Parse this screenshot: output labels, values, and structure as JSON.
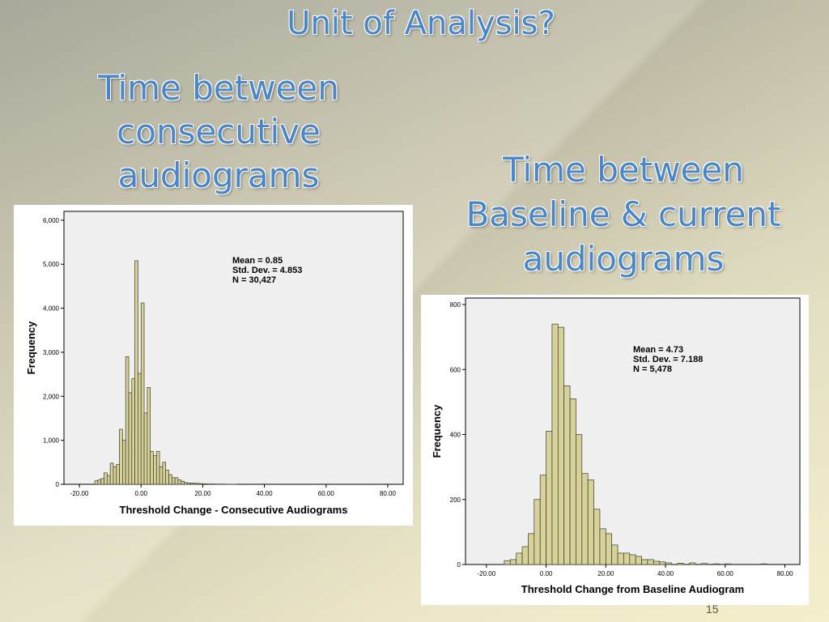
{
  "slide": {
    "title": "Unit of Analysis?",
    "left_heading": [
      "Time between",
      "consecutive",
      "audiograms"
    ],
    "right_heading": [
      "Time between",
      "Baseline & current",
      "audiograms"
    ],
    "slide_number": "15"
  },
  "chart_data": [
    {
      "type": "bar",
      "xlabel": "Threshold Change - Consecutive Audiograms",
      "ylabel": "Frequency",
      "xlim": [
        -25,
        85
      ],
      "ylim": [
        0,
        6200
      ],
      "x_ticks": [
        -20,
        0,
        20,
        40,
        60,
        80
      ],
      "x_tick_labels": [
        "-20.00",
        "0.00",
        "20.00",
        "40.00",
        "60.00",
        "80.00"
      ],
      "y_ticks": [
        0,
        1000,
        2000,
        3000,
        4000,
        5000,
        6000
      ],
      "y_tick_labels": [
        "0",
        "1,000",
        "2,000",
        "3,000",
        "4,000",
        "5,000",
        "6,000"
      ],
      "stats": [
        "Mean = 0.85",
        "Std. Dev. = 4.853",
        "N = 30,427"
      ],
      "bin_width": 1,
      "bins": [
        -15,
        -14,
        -13,
        -12,
        -11,
        -10,
        -9,
        -8,
        -7,
        -6,
        -5,
        -4,
        -3,
        -2,
        -1,
        0,
        1,
        2,
        3,
        4,
        5,
        6,
        7,
        8,
        9,
        10,
        11,
        12,
        13,
        14,
        15,
        16,
        17,
        18,
        19,
        20,
        21,
        22,
        23,
        24,
        25,
        26,
        27,
        28,
        29,
        30
      ],
      "values": [
        80,
        100,
        130,
        260,
        200,
        480,
        400,
        450,
        1250,
        1000,
        2900,
        2080,
        2400,
        5080,
        2520,
        4120,
        1620,
        2200,
        750,
        650,
        750,
        400,
        500,
        320,
        220,
        150,
        150,
        100,
        70,
        40,
        30,
        30,
        25,
        20,
        15,
        12,
        10,
        8,
        8,
        6,
        5,
        5,
        4,
        3,
        3,
        2
      ]
    },
    {
      "type": "bar",
      "xlabel": "Threshold Change from Baseline Audiogram",
      "ylabel": "Frequency",
      "xlim": [
        -27,
        85
      ],
      "ylim": [
        0,
        820
      ],
      "x_ticks": [
        -20,
        0,
        20,
        40,
        60,
        80
      ],
      "x_tick_labels": [
        "-20.00",
        "0.00",
        "20.00",
        "40.00",
        "60.00",
        "80.00"
      ],
      "y_ticks": [
        0,
        200,
        400,
        600,
        800
      ],
      "y_tick_labels": [
        "0",
        "200",
        "400",
        "600",
        "800"
      ],
      "stats": [
        "Mean = 4.73",
        "Std. Dev. = 7.188",
        "N = 5,478"
      ],
      "bin_width": 2,
      "bins": [
        -14,
        -12,
        -10,
        -8,
        -6,
        -4,
        -2,
        0,
        2,
        4,
        6,
        8,
        10,
        12,
        14,
        16,
        18,
        20,
        22,
        24,
        26,
        28,
        30,
        32,
        34,
        36,
        38,
        40,
        44,
        48,
        52,
        56,
        60,
        72
      ],
      "values": [
        12,
        15,
        35,
        55,
        95,
        200,
        275,
        410,
        740,
        730,
        550,
        510,
        400,
        280,
        260,
        170,
        110,
        95,
        60,
        35,
        35,
        30,
        25,
        15,
        15,
        10,
        8,
        5,
        4,
        5,
        3,
        2,
        2,
        2
      ]
    }
  ]
}
